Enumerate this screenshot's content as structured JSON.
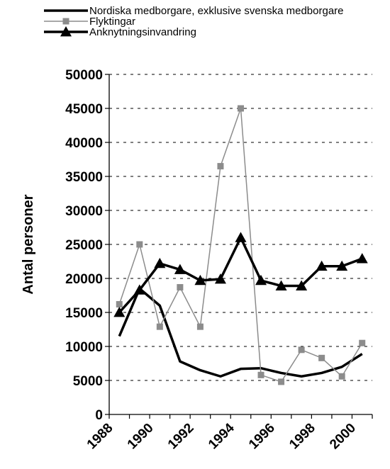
{
  "chart_data": {
    "type": "line",
    "title": "",
    "xlabel": "",
    "ylabel": "Antal personer",
    "xlim": [
      1988,
      2001
    ],
    "ylim": [
      0,
      50000
    ],
    "x_ticks": [
      "1988",
      "1990",
      "1992",
      "1994",
      "1996",
      "1998",
      "2000"
    ],
    "y_ticks": [
      "0",
      "5000",
      "10000",
      "15000",
      "20000",
      "25000",
      "30000",
      "35000",
      "40000",
      "45000",
      "50000"
    ],
    "grid": "horizontal dashed",
    "legend_position": "top-left",
    "x": [
      1988.5,
      1989.5,
      1990.5,
      1991.5,
      1992.5,
      1993.5,
      1994.5,
      1995.5,
      1996.5,
      1997.5,
      1998.5,
      1999.5,
      2000.5
    ],
    "series": [
      {
        "name": "Nordiska medborgare, exklusive svenska medborgare",
        "color": "#000000",
        "marker": "none",
        "values": [
          11500,
          18500,
          16000,
          7800,
          6500,
          5600,
          6700,
          6800,
          6100,
          5600,
          6100,
          7000,
          8900
        ]
      },
      {
        "name": "Flyktingar",
        "color": "#8c8c8c",
        "marker": "square",
        "values": [
          16200,
          25000,
          12900,
          18700,
          12900,
          36500,
          45000,
          5800,
          4800,
          9500,
          8300,
          5600,
          10500
        ]
      },
      {
        "name": "Anknytningsinvandring",
        "color": "#000000",
        "marker": "triangle",
        "values": [
          15000,
          18300,
          22200,
          21300,
          19700,
          19900,
          26000,
          19700,
          18900,
          18900,
          21800,
          21800,
          22900
        ]
      }
    ]
  }
}
